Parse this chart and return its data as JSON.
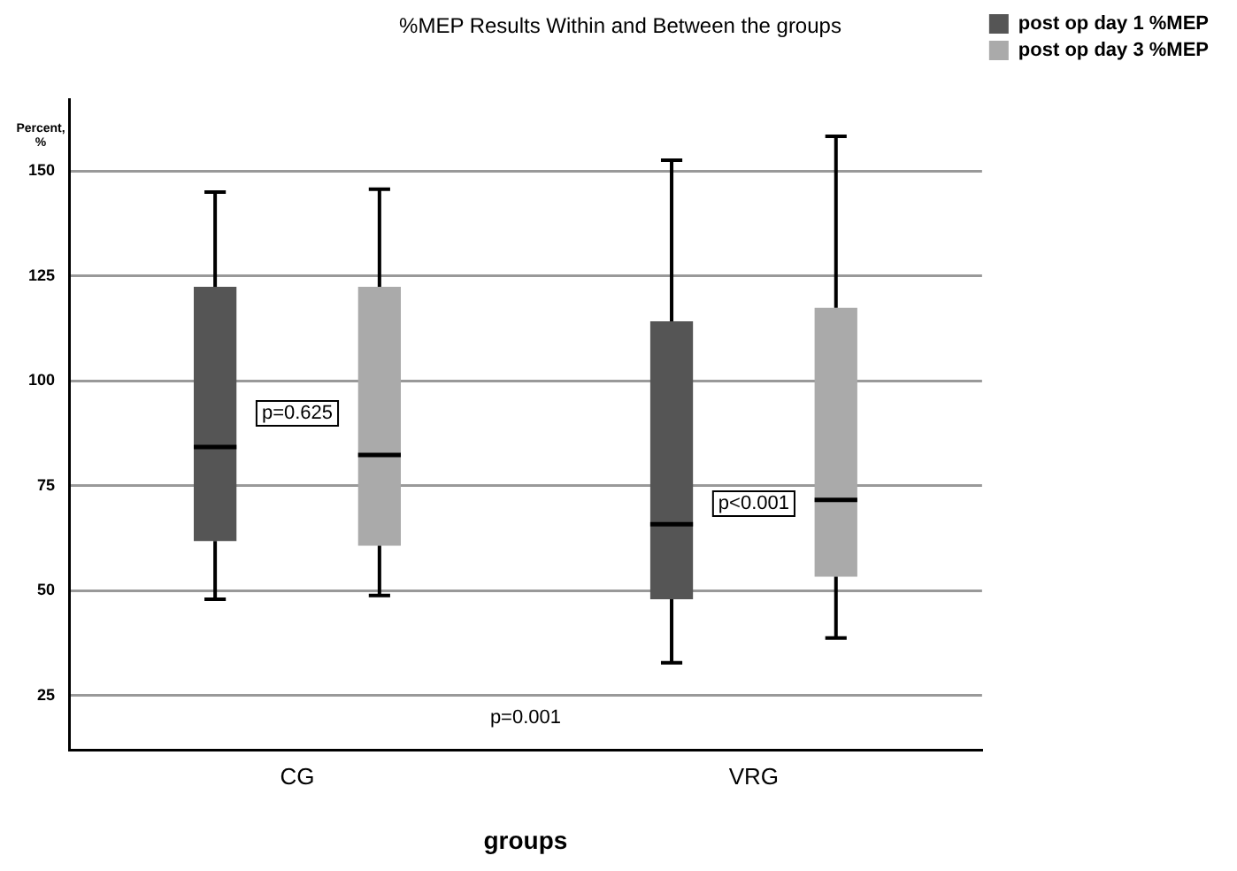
{
  "chart_data": {
    "type": "box",
    "title": "%MEP Results Within and Between the groups",
    "xlabel": "groups",
    "ylabel": "Percent, %",
    "categories": [
      "CG",
      "VRG"
    ],
    "series": [
      {
        "name": "post op day 1 %MEP",
        "color": "#555555",
        "boxes": [
          {
            "low": 47.9,
            "q1": 61.8,
            "median": 84.2,
            "q3": 122.4,
            "high": 145.0
          },
          {
            "low": 32.8,
            "q1": 47.9,
            "median": 65.8,
            "q3": 114.2,
            "high": 152.6
          }
        ]
      },
      {
        "name": "post op day 3 %MEP",
        "color": "#aaaaaa",
        "boxes": [
          {
            "low": 48.8,
            "q1": 60.7,
            "median": 82.3,
            "q3": 122.4,
            "high": 145.7
          },
          {
            "low": 38.7,
            "q1": 53.3,
            "median": 71.6,
            "q3": 117.4,
            "high": 158.3
          }
        ]
      }
    ],
    "ylim": [
      12,
      167
    ],
    "yticks": [
      25,
      50,
      75,
      100,
      125,
      150
    ],
    "grid": "y",
    "legend": "top right",
    "annotations": [
      "p=0.625",
      "p<0.001",
      "p=0.001"
    ]
  }
}
